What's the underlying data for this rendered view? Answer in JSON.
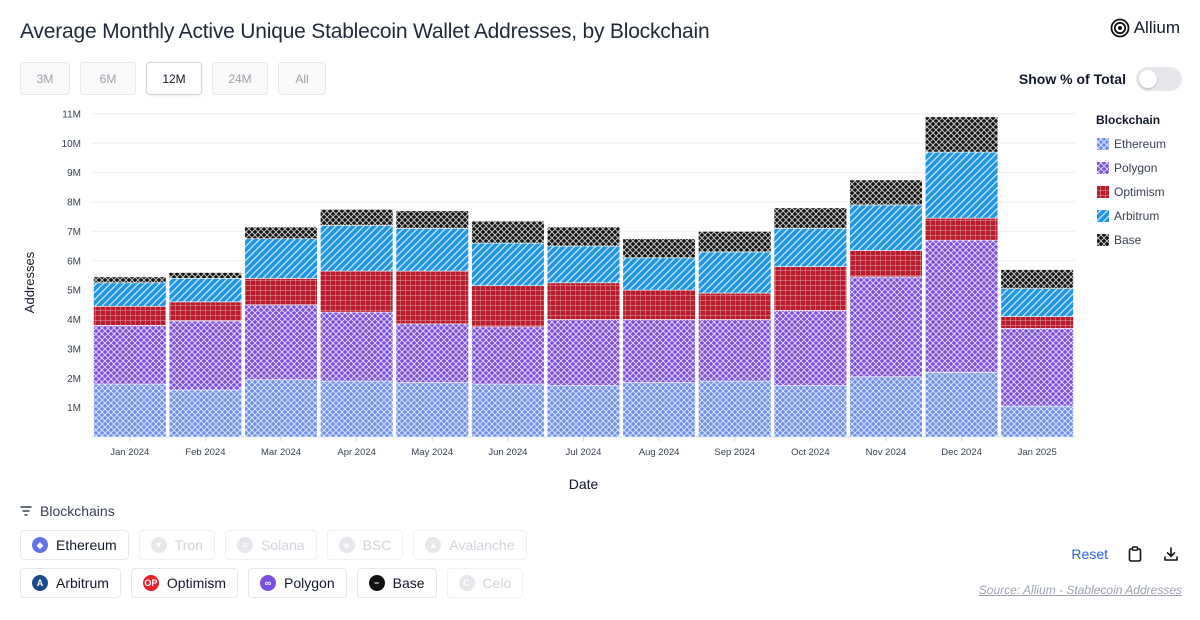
{
  "header": {
    "title": "Average Monthly Active Unique Stablecoin Wallet Addresses, by Blockchain",
    "brand": "Allium"
  },
  "ranges": [
    {
      "label": "3M",
      "active": false
    },
    {
      "label": "6M",
      "active": false
    },
    {
      "label": "12M",
      "active": true
    },
    {
      "label": "24M",
      "active": false
    },
    {
      "label": "All",
      "active": false
    }
  ],
  "toggle": {
    "label": "Show % of Total",
    "on": false
  },
  "chart_data": {
    "type": "bar",
    "stacked": true,
    "xlabel": "Date",
    "ylabel": "Addresses",
    "ylim": [
      0,
      11200000
    ],
    "yticks": [
      "1M",
      "2M",
      "3M",
      "4M",
      "5M",
      "6M",
      "7M",
      "8M",
      "9M",
      "10M",
      "11M"
    ],
    "legend_title": "Blockchain",
    "legend_position": "right",
    "categories": [
      "Jan 2024",
      "Feb 2024",
      "Mar 2024",
      "Apr 2024",
      "May 2024",
      "Jun 2024",
      "Jul 2024",
      "Aug 2024",
      "Sep 2024",
      "Oct 2024",
      "Nov 2024",
      "Dec 2024",
      "Jan 2025"
    ],
    "series": [
      {
        "name": "Ethereum",
        "color": "#6d8fea",
        "pattern": "cross",
        "values": [
          1800000,
          1600000,
          1950000,
          1900000,
          1850000,
          1800000,
          1750000,
          1850000,
          1900000,
          1750000,
          2050000,
          2200000,
          1050000
        ]
      },
      {
        "name": "Polygon",
        "color": "#7c4ddb",
        "pattern": "cross",
        "values": [
          2000000,
          2350000,
          2550000,
          2350000,
          2000000,
          1950000,
          2250000,
          2150000,
          2100000,
          2550000,
          3400000,
          4500000,
          2650000
        ]
      },
      {
        "name": "Optimism",
        "color": "#b91c2c",
        "pattern": "grid",
        "values": [
          650000,
          650000,
          900000,
          1400000,
          1800000,
          1400000,
          1250000,
          1000000,
          900000,
          1500000,
          900000,
          750000,
          400000
        ]
      },
      {
        "name": "Arbitrum",
        "color": "#2196e3",
        "pattern": "diag",
        "values": [
          800000,
          800000,
          1350000,
          1550000,
          1450000,
          1450000,
          1250000,
          1100000,
          1400000,
          1300000,
          1550000,
          2250000,
          950000
        ]
      },
      {
        "name": "Base",
        "color": "#111111",
        "pattern": "cross",
        "values": [
          200000,
          200000,
          400000,
          550000,
          600000,
          750000,
          650000,
          650000,
          700000,
          700000,
          850000,
          1200000,
          650000
        ]
      }
    ]
  },
  "chains": {
    "header": "Blockchains",
    "row1": [
      {
        "label": "Ethereum",
        "active": true,
        "color": "#6273e6",
        "glyph": "◆"
      },
      {
        "label": "Tron",
        "active": false,
        "color": "#e5e7eb",
        "glyph": "▼"
      },
      {
        "label": "Solana",
        "active": false,
        "color": "#e5e7eb",
        "glyph": "≡"
      },
      {
        "label": "BSC",
        "active": false,
        "color": "#e5e7eb",
        "glyph": "◈"
      },
      {
        "label": "Avalanche",
        "active": false,
        "color": "#e5e7eb",
        "glyph": "▲"
      }
    ],
    "row2": [
      {
        "label": "Arbitrum",
        "active": true,
        "color": "#1b4a8a",
        "glyph": "A"
      },
      {
        "label": "Optimism",
        "active": true,
        "color": "#e8222d",
        "glyph": "OP"
      },
      {
        "label": "Polygon",
        "active": true,
        "color": "#7b4fe0",
        "glyph": "∞"
      },
      {
        "label": "Base",
        "active": true,
        "color": "#111111",
        "glyph": "−"
      },
      {
        "label": "Celo",
        "active": false,
        "color": "#e5e7eb",
        "glyph": "C"
      }
    ]
  },
  "actions": {
    "reset_label": "Reset"
  },
  "source": "Source: Allium - Stablecoin Addresses"
}
